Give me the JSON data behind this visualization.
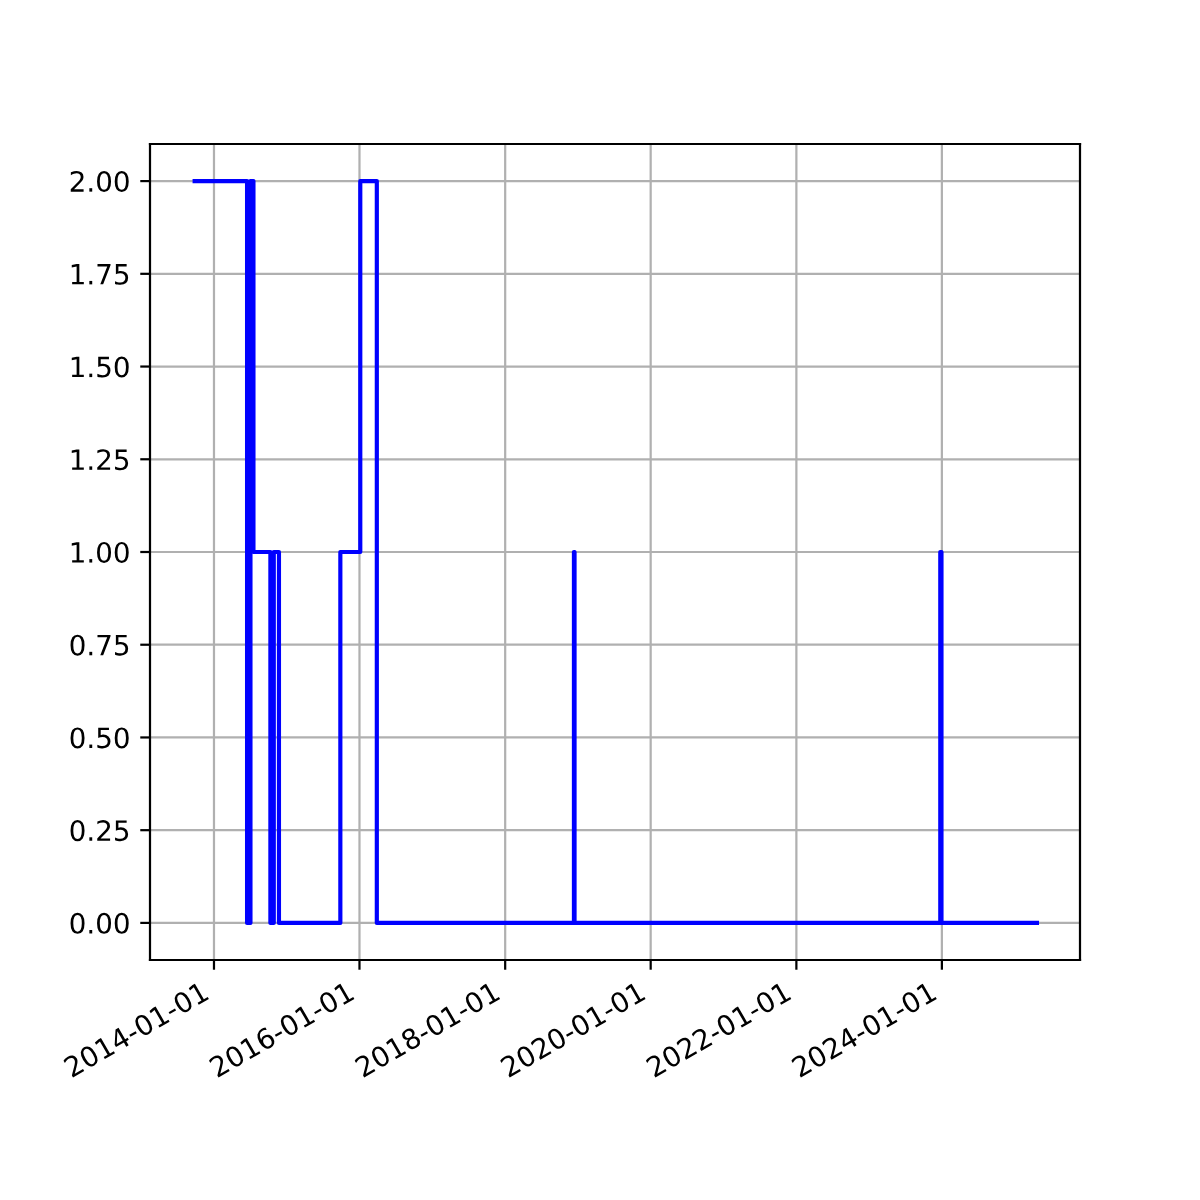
{
  "chart_data": {
    "type": "step",
    "x": [
      "2013-09-26",
      "2014-06-16",
      "2014-07-03",
      "2014-07-18",
      "2014-10-11",
      "2014-10-28",
      "2014-11-23",
      "2015-09-27",
      "2016-01-05",
      "2016-03-28",
      "2018-12-12",
      "2018-12-15",
      "2023-12-24",
      "2023-12-30",
      "2025-04-22"
    ],
    "series": [
      {
        "color": "#0000ff",
        "values": [
          2,
          0,
          2,
          1,
          0,
          1,
          0,
          1,
          2,
          0,
          1,
          0,
          1,
          0,
          0
        ]
      }
    ],
    "xlim": [
      "2013-02-14",
      "2025-11-24"
    ],
    "xticks": [
      {
        "value": "2014-01-01",
        "label": "2014-01-01"
      },
      {
        "value": "2016-01-01",
        "label": "2016-01-01"
      },
      {
        "value": "2018-01-01",
        "label": "2018-01-01"
      },
      {
        "value": "2020-01-01",
        "label": "2020-01-01"
      },
      {
        "value": "2022-01-01",
        "label": "2022-01-01"
      },
      {
        "value": "2024-01-01",
        "label": "2024-01-01"
      }
    ],
    "ylim": [
      -0.1,
      2.1
    ],
    "yticks": [
      {
        "value": 0,
        "label": "0.00"
      },
      {
        "value": 0.25,
        "label": "0.25"
      },
      {
        "value": 0.5,
        "label": "0.50"
      },
      {
        "value": 0.75,
        "label": "0.75"
      },
      {
        "value": 1,
        "label": "1.00"
      },
      {
        "value": 1.25,
        "label": "1.25"
      },
      {
        "value": 1.5,
        "label": "1.50"
      },
      {
        "value": 1.75,
        "label": "1.75"
      },
      {
        "value": 2,
        "label": "2.00"
      }
    ],
    "grid": true
  }
}
